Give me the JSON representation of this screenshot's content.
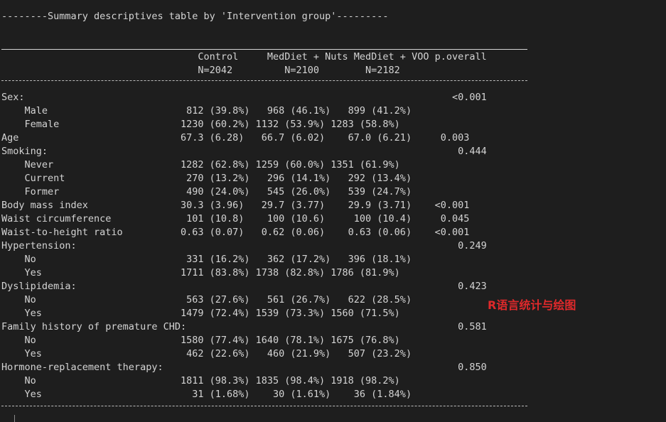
{
  "title": "--------Summary descriptives table by 'Intervention group'---------",
  "header": {
    "line1": "                                  Control     MedDiet + Nuts MedDiet + VOO p.overall",
    "line2": "                                  N=2042         N=2100        N=2182"
  },
  "rows": [
    "Sex:                                                                          <0.001",
    "    Male                        812 (39.8%)   968 (46.1%)   899 (41.2%)",
    "    Female                     1230 (60.2%) 1132 (53.9%) 1283 (58.8%)",
    "Age                            67.3 (6.28)   66.7 (6.02)    67.0 (6.21)     0.003",
    "Smoking:                                                                       0.444",
    "    Never                      1282 (62.8%) 1259 (60.0%) 1351 (61.9%)",
    "    Current                     270 (13.2%)   296 (14.1%)   292 (13.4%)",
    "    Former                      490 (24.0%)   545 (26.0%)   539 (24.7%)",
    "Body mass index                30.3 (3.96)   29.7 (3.77)    29.9 (3.71)    <0.001",
    "Waist circumference             101 (10.8)    100 (10.6)     100 (10.4)     0.045",
    "Waist-to-height ratio          0.63 (0.07)   0.62 (0.06)    0.63 (0.06)    <0.001",
    "Hypertension:                                                                  0.249",
    "    No                          331 (16.2%)   362 (17.2%)   396 (18.1%)",
    "    Yes                        1711 (83.8%) 1738 (82.8%) 1786 (81.9%)",
    "Dyslipidemia:                                                                  0.423",
    "    No                          563 (27.6%)   561 (26.7%)   622 (28.5%)",
    "    Yes                        1479 (72.4%) 1539 (73.3%) 1560 (71.5%)",
    "Family history of premature CHD:                                               0.581",
    "    No                         1580 (77.4%) 1640 (78.1%) 1675 (76.8%)",
    "    Yes                         462 (22.6%)   460 (21.9%)   507 (23.2%)",
    "Hormone-replacement therapy:                                                   0.850",
    "    No                         1811 (98.3%) 1835 (98.4%) 1918 (98.2%)",
    "    Yes                          31 (1.68%)    30 (1.61%)    36 (1.84%)"
  ],
  "watermark": "R语言统计与绘图",
  "colors": {
    "background": "#1e1e1e",
    "text": "#d4d4d4",
    "watermark": "#e0292b"
  }
}
